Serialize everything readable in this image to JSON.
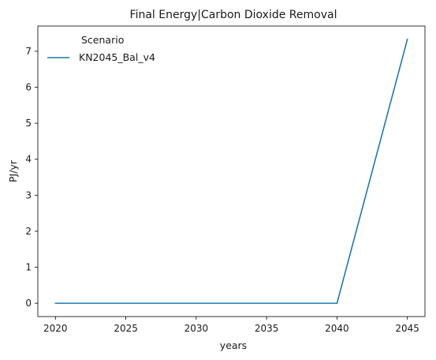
{
  "chart_data": {
    "type": "line",
    "title": "Final Energy|Carbon Dioxide Removal",
    "xlabel": "years",
    "ylabel": "PJ/yr",
    "x": [
      2020,
      2025,
      2030,
      2035,
      2040,
      2045
    ],
    "xticks": [
      2020,
      2025,
      2030,
      2035,
      2040,
      2045
    ],
    "yticks": [
      0,
      1,
      2,
      3,
      4,
      5,
      6,
      7
    ],
    "xlim": [
      2018.75,
      2046.25
    ],
    "ylim": [
      -0.37,
      7.7
    ],
    "grid": false,
    "legend": {
      "title": "Scenario",
      "placement": "top-left"
    },
    "series": [
      {
        "name": "KN2045_Bal_v4",
        "color": "#1f77b4",
        "values": [
          0,
          0,
          0,
          0,
          0,
          7.33
        ]
      }
    ]
  }
}
